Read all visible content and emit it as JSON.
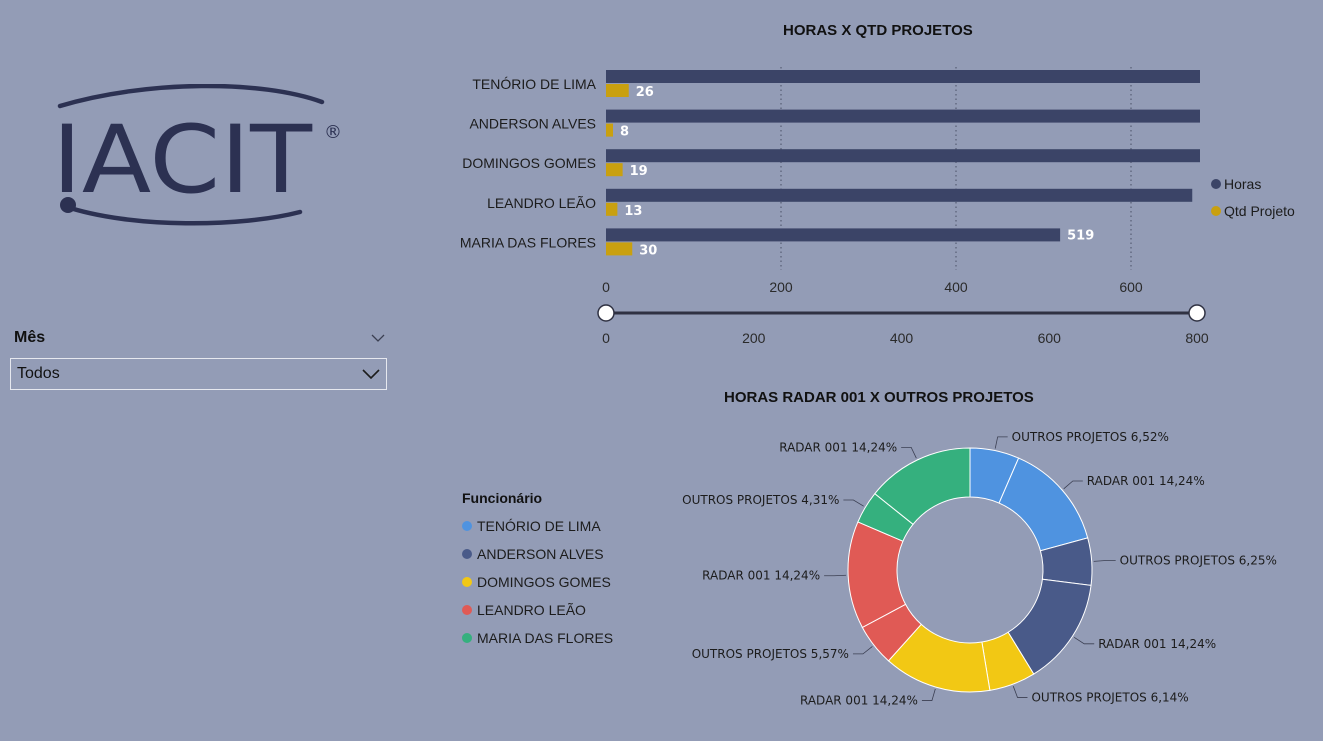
{
  "logo": {
    "text": "IACIT",
    "registered": "®"
  },
  "slicer": {
    "title": "Mês",
    "value": "Todos"
  },
  "colors": {
    "horas": "#3b4467",
    "qtd": "#c9a00f",
    "tenorio": "#4f93e0",
    "anderson": "#495a89",
    "domingos": "#f2c814",
    "leandro": "#e05a55",
    "maria": "#35b07e"
  },
  "chart_data": [
    {
      "type": "bar",
      "orientation": "horizontal",
      "title": "HORAS X QTD PROJETOS",
      "categories": [
        "TENÓRIO DE LIMA",
        "ANDERSON ALVES",
        "DOMINGOS GOMES",
        "LEANDRO LEÃO",
        "MARIA DAS FLORES"
      ],
      "series": [
        {
          "name": "Horas",
          "values": [
            784,
            751,
            739,
            670,
            519
          ]
        },
        {
          "name": "Qtd Projeto",
          "values": [
            26,
            8,
            19,
            13,
            30
          ]
        }
      ],
      "xlim": [
        0,
        800
      ],
      "xticks": [
        "0",
        "200",
        "400",
        "600",
        "800"
      ],
      "grid": "vertical dotted",
      "legend": "right",
      "slider": {
        "range": [
          0,
          800
        ],
        "ticks": [
          "0",
          "200",
          "400",
          "600",
          "800"
        ]
      }
    },
    {
      "type": "pie",
      "style": "donut",
      "title": "HORAS RADAR 001 X OUTROS PROJETOS",
      "legend_title": "Funcionário",
      "legend": [
        "TENÓRIO DE LIMA",
        "ANDERSON ALVES",
        "DOMINGOS GOMES",
        "LEANDRO LEÃO",
        "MARIA DAS FLORES"
      ],
      "slices": [
        {
          "label": "OUTROS PROJETOS 6,52%",
          "value": 6.52,
          "group": "TENÓRIO DE LIMA"
        },
        {
          "label": "RADAR 001 14,24%",
          "value": 14.24,
          "group": "TENÓRIO DE LIMA"
        },
        {
          "label": "OUTROS PROJETOS 6,25%",
          "value": 6.25,
          "group": "ANDERSON ALVES"
        },
        {
          "label": "RADAR 001 14,24%",
          "value": 14.24,
          "group": "ANDERSON ALVES"
        },
        {
          "label": "OUTROS PROJETOS 6,14%",
          "value": 6.14,
          "group": "DOMINGOS GOMES"
        },
        {
          "label": "RADAR 001 14,24%",
          "value": 14.24,
          "group": "DOMINGOS GOMES"
        },
        {
          "label": "OUTROS PROJETOS 5,57%",
          "value": 5.57,
          "group": "LEANDRO LEÃO"
        },
        {
          "label": "RADAR 001 14,24%",
          "value": 14.24,
          "group": "LEANDRO LEÃO"
        },
        {
          "label": "OUTROS PROJETOS 4,31%",
          "value": 4.31,
          "group": "MARIA DAS FLORES"
        },
        {
          "label": "RADAR 001 14,24%",
          "value": 14.24,
          "group": "MARIA DAS FLORES"
        }
      ]
    }
  ]
}
